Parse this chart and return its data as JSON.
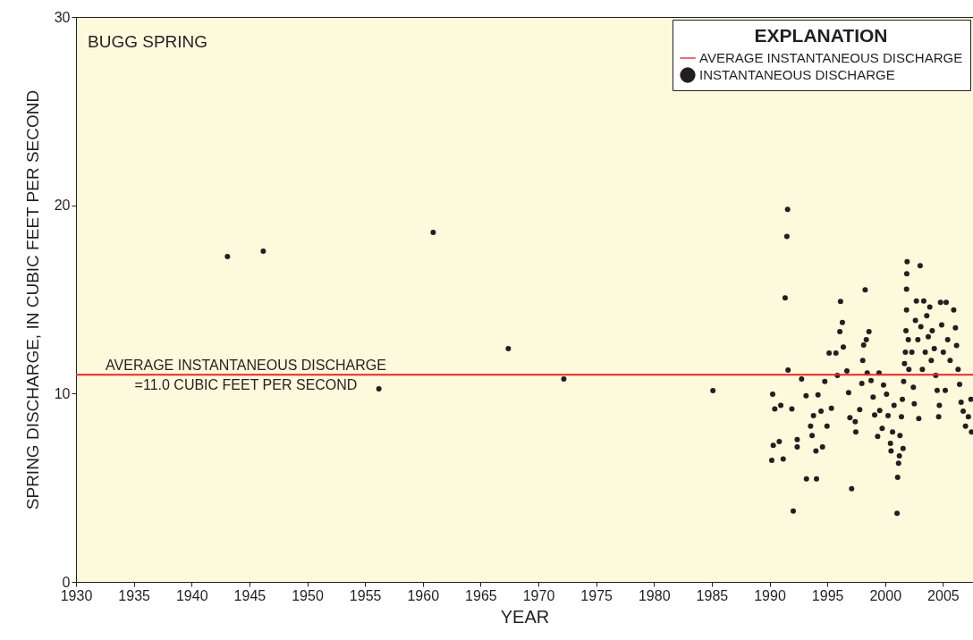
{
  "chart_data": {
    "type": "scatter",
    "title": "BUGG SPRING",
    "xlabel": "YEAR",
    "ylabel": "SPRING DISCHARGE, IN CUBIC FEET PER SECOND",
    "legend_title": "EXPLANATION",
    "legend": "top right",
    "grid": false,
    "xlim": [
      1930,
      2007.6
    ],
    "xticks": [
      1930,
      1935,
      1940,
      1945,
      1950,
      1955,
      1960,
      1965,
      1970,
      1975,
      1980,
      1985,
      1990,
      1995,
      2000,
      2005
    ],
    "ylim": [
      0,
      30
    ],
    "yticks": [
      0,
      10,
      20,
      30
    ],
    "series": [
      {
        "name": "AVERAGE INSTANTANEOUS DISCHARGE",
        "type": "line",
        "color": "#e8262b",
        "line_style": "solid",
        "marker": "none",
        "x": [
          1930,
          2007.6
        ],
        "values": [
          11.0,
          11.0
        ]
      },
      {
        "name": "INSTANTANEOUS DISCHARGE",
        "color": "#231f20",
        "marker": "circle",
        "x": [
          1943.1,
          1946.2,
          1956.2,
          1960.9,
          1967.4,
          1972.2,
          1985.1,
          1991.56,
          1991.5,
          1991.35,
          1991.6,
          1990.27,
          1990.45,
          1990.32,
          1990.19,
          1991.18,
          1990.97,
          1990.84,
          1992.05,
          1991.93,
          1992.39,
          1992.39,
          1992.77,
          1993.16,
          1993.19,
          1993.55,
          1993.68,
          1993.8,
          1994.06,
          1994.01,
          1994.19,
          1994.58,
          1994.45,
          1994.78,
          1994.97,
          1995.15,
          1995.35,
          1995.74,
          1995.87,
          1996.14,
          1996.3,
          1996.08,
          1996.38,
          1996.69,
          1996.84,
          1996.95,
          1997.1,
          1997.41,
          1997.46,
          1997.8,
          1997.98,
          1998.06,
          1998.14,
          1998.27,
          1998.37,
          1998.6,
          1998.45,
          1998.78,
          1998.96,
          1999.09,
          1999.35,
          1999.53,
          1999.47,
          1999.86,
          1999.74,
          2000.12,
          2000.25,
          2000.46,
          2000.51,
          2000.64,
          2000.77,
          2001.03,
          2001.08,
          2001.16,
          2001.23,
          2001.28,
          2001.41,
          2001.49,
          2001.55,
          2001.6,
          2001.67,
          2001.75,
          2001.8,
          2001.85,
          2001.85,
          2001.87,
          2001.9,
          2002.0,
          2002.05,
          2002.31,
          2002.44,
          2002.52,
          2002.62,
          2002.7,
          2002.83,
          2002.91,
          2003.03,
          2003.09,
          2003.22,
          2003.34,
          2003.47,
          2003.6,
          2003.73,
          2003.86,
          2003.99,
          2004.07,
          2004.25,
          2004.38,
          2004.5,
          2004.63,
          2004.69,
          2004.79,
          2004.89,
          2005.03,
          2005.2,
          2005.28,
          2005.41,
          2005.62,
          2005.93,
          2006.08,
          2006.18,
          2006.31,
          2006.44,
          2006.57,
          2006.75,
          2006.95,
          2007.2,
          2007.47,
          2007.42
        ],
        "values": [
          17.28,
          17.56,
          10.25,
          18.56,
          12.39,
          10.77,
          10.16,
          19.78,
          18.35,
          15.08,
          11.25,
          9.97,
          9.19,
          7.25,
          6.45,
          6.53,
          9.38,
          7.45,
          3.76,
          9.19,
          7.56,
          7.17,
          10.77,
          9.89,
          5.47,
          8.27,
          7.77,
          8.83,
          5.47,
          6.96,
          9.93,
          7.17,
          9.07,
          10.65,
          8.27,
          12.15,
          9.22,
          12.15,
          10.96,
          14.89,
          13.78,
          13.29,
          12.47,
          11.2,
          10.05,
          8.72,
          4.95,
          8.51,
          7.96,
          9.15,
          10.54,
          11.76,
          12.58,
          15.51,
          12.86,
          13.29,
          11.09,
          10.69,
          9.81,
          8.86,
          7.72,
          9.1,
          11.09,
          10.46,
          8.15,
          9.97,
          8.83,
          7.36,
          6.96,
          7.96,
          9.38,
          3.64,
          5.55,
          6.3,
          6.69,
          7.77,
          8.77,
          9.7,
          7.08,
          10.65,
          11.6,
          12.2,
          13.34,
          14.44,
          15.55,
          16.37,
          17.0,
          12.86,
          11.28,
          12.2,
          10.34,
          9.46,
          13.89,
          14.92,
          12.86,
          8.67,
          16.79,
          13.55,
          11.28,
          14.92,
          12.2,
          14.13,
          13.02,
          14.6,
          11.76,
          13.34,
          12.39,
          10.96,
          10.17,
          8.77,
          9.38,
          14.84,
          13.65,
          12.2,
          10.17,
          14.84,
          12.86,
          11.76,
          14.44,
          13.49,
          12.55,
          11.28,
          10.49,
          9.54,
          9.07,
          8.27,
          8.77,
          7.96,
          9.7
        ]
      }
    ],
    "annotations": [
      {
        "text": "AVERAGE INSTANTANEOUS DISCHARGE\n=11.0 CUBIC FEET PER SECOND",
        "x": 1944.7,
        "y": 11.0
      }
    ]
  }
}
